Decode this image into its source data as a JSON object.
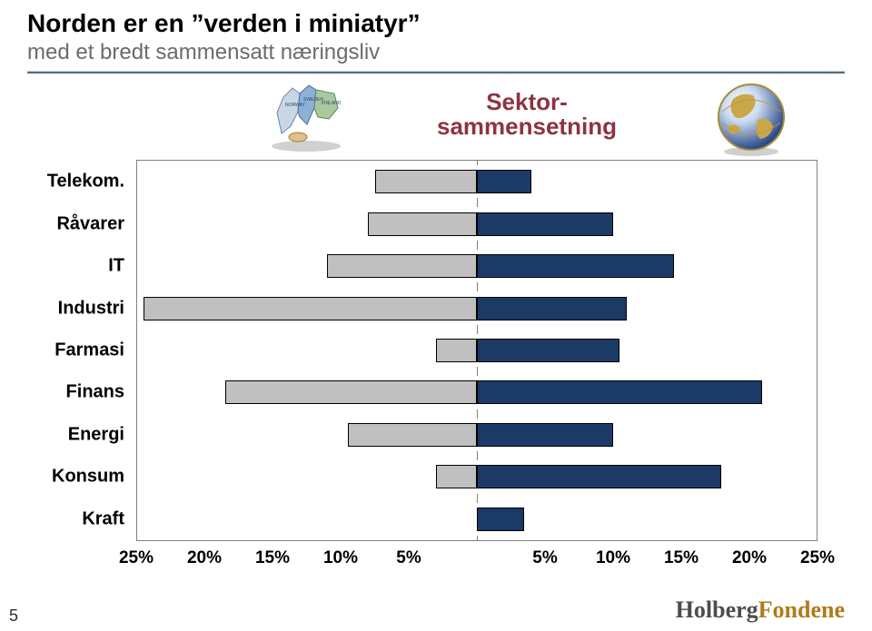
{
  "title_prefix": "Norden er en ",
  "title_quoted": "”verden i miniatyr”",
  "subtitle": "med et bredt sammensatt næringsliv",
  "sector_label_line1": "Sektor-",
  "sector_label_line2": "sammensetning",
  "sector_label_color": "#8d3342",
  "chart": {
    "type": "paired-horizontal-bar",
    "categories": [
      "Telekom.",
      "Råvarer",
      "IT",
      "Industri",
      "Farmasi",
      "Finans",
      "Energi",
      "Konsum",
      "Kraft"
    ],
    "left_values": [
      7.5,
      8,
      11,
      24.5,
      3,
      18.5,
      9.5,
      3,
      0
    ],
    "right_values": [
      4,
      10,
      14.5,
      11,
      10.5,
      21,
      10,
      18,
      3.5
    ],
    "xlim": [
      -25,
      25
    ],
    "x_ticks_left": [
      25,
      20,
      15,
      10,
      5
    ],
    "x_ticks_right": [
      5,
      10,
      15,
      20,
      25
    ],
    "x_tick_suffix": "%",
    "left_bar_fill": "#c0c0c0",
    "right_bar_fill": "#1b3a66",
    "bar_border_color": "#000000",
    "plot_border_color": "#808080",
    "background_color": "#ffffff",
    "category_fontsize": 20,
    "tick_fontsize": 19
  },
  "page_number": "5",
  "logo_left": "Holberg",
  "logo_right": "Fondene"
}
